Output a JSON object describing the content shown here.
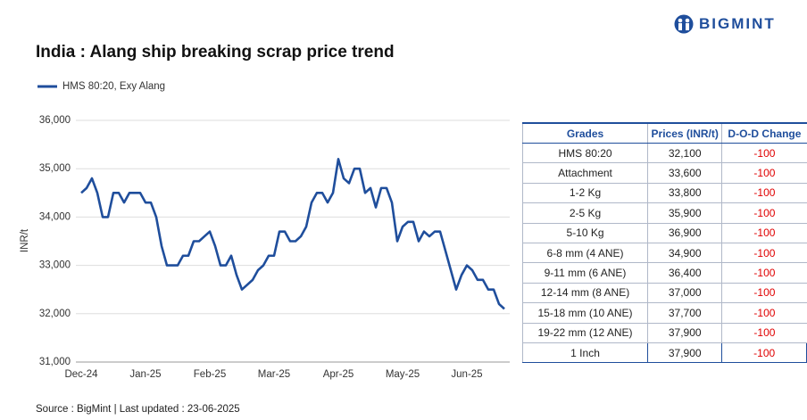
{
  "brand": "BIGMINT",
  "chart_data": {
    "type": "line",
    "title": "India : Alang ship breaking scrap price trend",
    "y_label": "INR/t",
    "categories": [
      "Dec-24",
      null,
      null,
      null,
      null,
      null,
      null,
      null,
      null,
      null,
      null,
      null,
      "Jan-25",
      null,
      null,
      null,
      null,
      null,
      null,
      null,
      null,
      null,
      null,
      null,
      "Feb-25",
      null,
      null,
      null,
      null,
      null,
      null,
      null,
      null,
      null,
      null,
      null,
      "Mar-25",
      null,
      null,
      null,
      null,
      null,
      null,
      null,
      null,
      null,
      null,
      null,
      "Apr-25",
      null,
      null,
      null,
      null,
      null,
      null,
      null,
      null,
      null,
      null,
      null,
      "May-25",
      null,
      null,
      null,
      null,
      null,
      null,
      null,
      null,
      null,
      null,
      null,
      "Jun-25",
      null,
      null,
      null,
      null,
      null,
      null,
      null
    ],
    "series": [
      {
        "name": "HMS 80:20, Exy Alang",
        "color": "#1f4e9c",
        "values": [
          34500,
          34600,
          34800,
          34500,
          34000,
          34000,
          34500,
          34500,
          34300,
          34500,
          34500,
          34500,
          34300,
          34300,
          34000,
          33400,
          33000,
          33000,
          33000,
          33200,
          33200,
          33500,
          33500,
          33600,
          33700,
          33400,
          33000,
          33000,
          33200,
          32800,
          32500,
          32600,
          32700,
          32900,
          33000,
          33200,
          33200,
          33700,
          33700,
          33500,
          33500,
          33600,
          33800,
          34300,
          34500,
          34500,
          34300,
          34500,
          35200,
          34800,
          34700,
          35000,
          35000,
          34500,
          34600,
          34200,
          34600,
          34600,
          34300,
          33500,
          33800,
          33900,
          33900,
          33500,
          33700,
          33600,
          33700,
          33700,
          33300,
          32900,
          32500,
          32800,
          33000,
          32900,
          32700,
          32700,
          32500,
          32500,
          32200,
          32100
        ]
      }
    ],
    "ylim": [
      31000,
      36000
    ],
    "yticks": [
      {
        "value": 31000,
        "label": "31,000"
      },
      {
        "value": 32000,
        "label": "32,000"
      },
      {
        "value": 33000,
        "label": "33,000"
      },
      {
        "value": 34000,
        "label": "34,000"
      },
      {
        "value": 35000,
        "label": "35,000"
      },
      {
        "value": 36000,
        "label": "36,000"
      }
    ],
    "grid": true
  },
  "table": {
    "header": [
      "Grades",
      "Prices (INR/t)",
      "D-O-D Change"
    ],
    "rows": [
      [
        "HMS 80:20",
        "32,100",
        "-100"
      ],
      [
        "Attachment",
        "33,600",
        "-100"
      ],
      [
        "1-2 Kg",
        "33,800",
        "-100"
      ],
      [
        "2-5 Kg",
        "35,900",
        "-100"
      ],
      [
        "5-10 Kg",
        "36,900",
        "-100"
      ],
      [
        "6-8 mm (4 ANE)",
        "34,900",
        "-100"
      ],
      [
        "9-11 mm (6 ANE)",
        "36,400",
        "-100"
      ],
      [
        "12-14 mm (8 ANE)",
        "37,000",
        "-100"
      ],
      [
        "15-18 mm (10 ANE)",
        "37,700",
        "-100"
      ],
      [
        "19-22 mm (12 ANE)",
        "37,900",
        "-100"
      ],
      [
        "1 Inch",
        "37,900",
        "-100"
      ]
    ]
  },
  "source": "Source : BigMint | Last updated : 23-06-2025"
}
